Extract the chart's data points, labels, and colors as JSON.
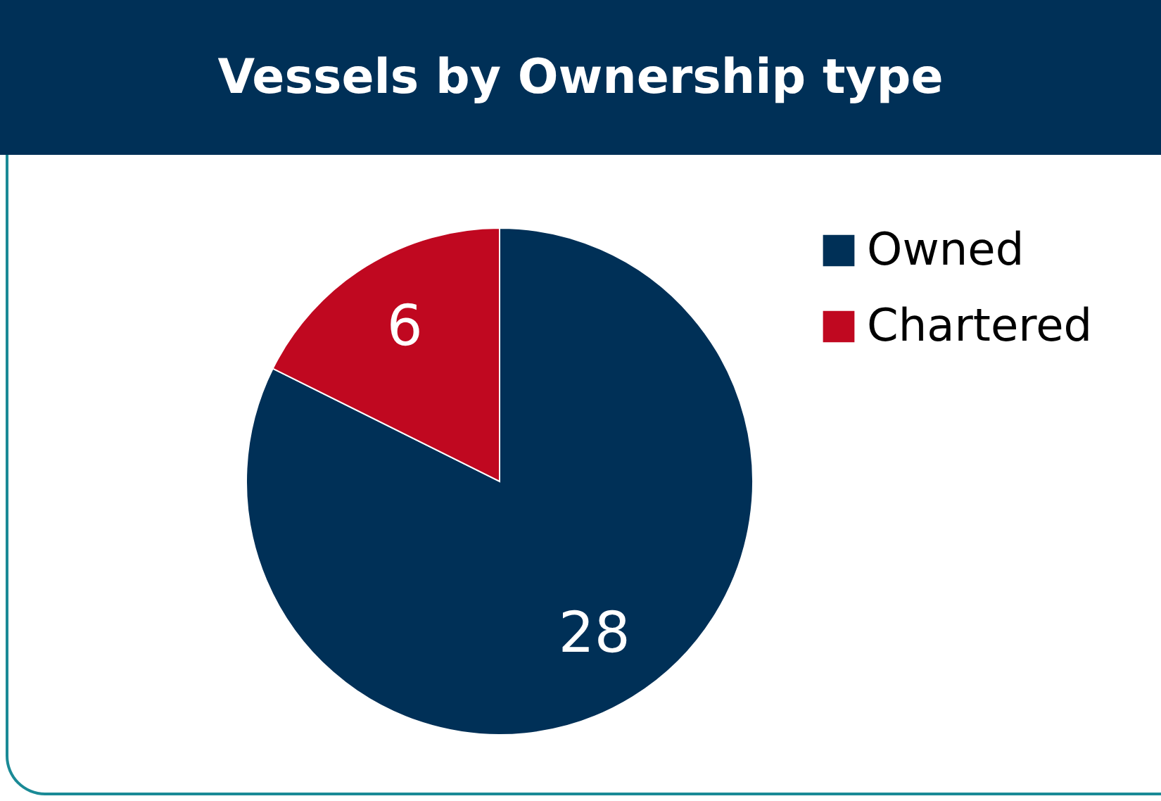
{
  "chart_data": {
    "type": "pie",
    "title": "Vessels by Ownership type",
    "categories": [
      "Owned",
      "Chartered"
    ],
    "values": [
      28,
      6
    ],
    "colors": [
      "#003057",
      "#c00820"
    ],
    "data_labels": true,
    "legend": "right"
  }
}
